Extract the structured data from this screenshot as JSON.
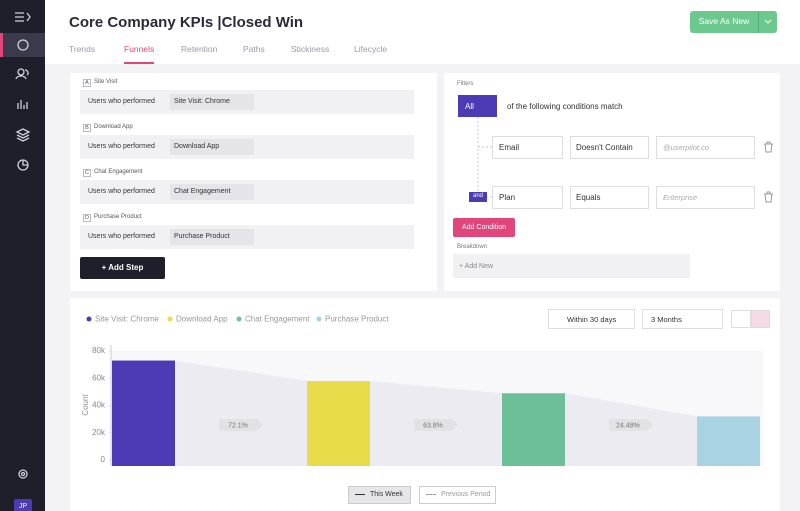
{
  "header": {
    "title": "Core Company KPIs |Closed Win",
    "save_button": "Save As New"
  },
  "tabs": {
    "items": [
      "Trends",
      "Funnels",
      "Retention",
      "Paths",
      "Stickiness",
      "Lifecycle"
    ],
    "active": 1
  },
  "steps": {
    "items": [
      {
        "letter": "A",
        "name": "Site Visit",
        "prefix": "Users who performed",
        "event": "Site Visit: Chrome"
      },
      {
        "letter": "B",
        "name": "Download App",
        "prefix": "Users who performed",
        "event": "Download App"
      },
      {
        "letter": "C",
        "name": "Chat Engagement",
        "prefix": "Users who performed",
        "event": "Chat Engagement"
      },
      {
        "letter": "D",
        "name": "Purchase Product",
        "prefix": "Users who performed",
        "event": "Purchase Product"
      }
    ],
    "add_button": "+ Add Step"
  },
  "filters": {
    "label": "Filters",
    "match_button": "All",
    "match_text": "of the following conditions match",
    "conditions": [
      {
        "field": "Email",
        "operator": "Doesn't Contain",
        "placeholder": "@userpilot.co"
      },
      {
        "connector": "and",
        "field": "Plan",
        "operator": "Equals",
        "placeholder": "Enterprise"
      }
    ],
    "add_condition": "Add Condition",
    "breakdown_label": "Breakdown",
    "add_new": "+ Add New"
  },
  "controls": {
    "date_range": "Within 30 days",
    "period": "3 Months",
    "compare": [
      "This Week",
      "Previous Period"
    ]
  },
  "sidebar": {
    "avatar": "JP"
  },
  "chart_data": {
    "type": "funnel",
    "y_label": "Count",
    "ylim": [
      0,
      80000
    ],
    "yticks": [
      0,
      {
        "value": 20000,
        "label": "20k"
      },
      {
        "value": 40000,
        "label": "40k"
      },
      {
        "value": 60000,
        "label": "60k"
      },
      {
        "value": 80000,
        "label": "80k"
      }
    ],
    "series": [
      {
        "name": "Site Visit: Chrome",
        "color": "#4b3bb5",
        "values": [
          73000
        ]
      },
      {
        "name": "Download App",
        "color": "#e8dc4a",
        "values": [
          58000
        ]
      },
      {
        "name": "Chat Engagement",
        "color": "#6dbf98",
        "values": [
          49000
        ]
      },
      {
        "name": "Purchase Product",
        "color": "#a9d3e3",
        "values": [
          32000
        ]
      }
    ],
    "conversions": {
      "values": [
        72.1,
        63.8,
        24.48
      ],
      "value_labels": [
        "72.1%",
        "63.8%",
        "24.48%"
      ]
    }
  }
}
